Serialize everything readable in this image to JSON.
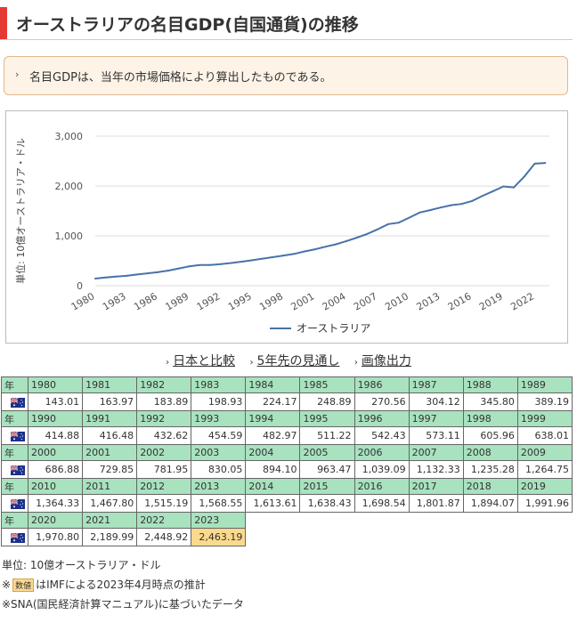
{
  "page": {
    "title": "オーストラリアの名目GDP(自国通貨)の推移",
    "note": "名目GDPは、当年の市場価格により算出したものである。"
  },
  "links": [
    {
      "label": "日本と比較"
    },
    {
      "label": "5年先の見通し"
    },
    {
      "label": "画像出力"
    }
  ],
  "chart_data": {
    "type": "line",
    "title": "",
    "xlabel": "",
    "ylabel": "単位: 10億オーストラリア・ドル",
    "ylim": [
      0,
      3000
    ],
    "yticks": [
      "0",
      "1,000",
      "2,000",
      "3,000"
    ],
    "xticks": [
      "1980",
      "1983",
      "1986",
      "1989",
      "1992",
      "1995",
      "1998",
      "2001",
      "2004",
      "2007",
      "2010",
      "2013",
      "2016",
      "2019",
      "2022"
    ],
    "grid": true,
    "legend": "bottom",
    "series": [
      {
        "name": "オーストラリア",
        "color": "#4a72a8",
        "x": [
          1980,
          1981,
          1982,
          1983,
          1984,
          1985,
          1986,
          1987,
          1988,
          1989,
          1990,
          1991,
          1992,
          1993,
          1994,
          1995,
          1996,
          1997,
          1998,
          1999,
          2000,
          2001,
          2002,
          2003,
          2004,
          2005,
          2006,
          2007,
          2008,
          2009,
          2010,
          2011,
          2012,
          2013,
          2014,
          2015,
          2016,
          2017,
          2018,
          2019,
          2020,
          2021,
          2022,
          2023
        ],
        "values": [
          143.01,
          163.97,
          183.89,
          198.93,
          224.17,
          248.89,
          270.56,
          304.12,
          345.8,
          389.19,
          414.88,
          416.48,
          432.62,
          454.59,
          482.97,
          511.22,
          542.43,
          573.11,
          605.96,
          638.01,
          686.88,
          729.85,
          781.95,
          830.05,
          894.1,
          963.47,
          1039.09,
          1132.33,
          1235.28,
          1264.75,
          1364.33,
          1467.8,
          1515.19,
          1568.55,
          1613.61,
          1638.43,
          1698.54,
          1801.87,
          1894.07,
          1991.96,
          1970.8,
          2189.99,
          2448.92,
          2463.19
        ]
      }
    ]
  },
  "table": {
    "row_label": "年",
    "country_flag": "australia-flag",
    "rows": [
      {
        "years": [
          "1980",
          "1981",
          "1982",
          "1983",
          "1984",
          "1985",
          "1986",
          "1987",
          "1988",
          "1989"
        ],
        "values": [
          "143.01",
          "163.97",
          "183.89",
          "198.93",
          "224.17",
          "248.89",
          "270.56",
          "304.12",
          "345.80",
          "389.19"
        ]
      },
      {
        "years": [
          "1990",
          "1991",
          "1992",
          "1993",
          "1994",
          "1995",
          "1996",
          "1997",
          "1998",
          "1999"
        ],
        "values": [
          "414.88",
          "416.48",
          "432.62",
          "454.59",
          "482.97",
          "511.22",
          "542.43",
          "573.11",
          "605.96",
          "638.01"
        ]
      },
      {
        "years": [
          "2000",
          "2001",
          "2002",
          "2003",
          "2004",
          "2005",
          "2006",
          "2007",
          "2008",
          "2009"
        ],
        "values": [
          "686.88",
          "729.85",
          "781.95",
          "830.05",
          "894.10",
          "963.47",
          "1,039.09",
          "1,132.33",
          "1,235.28",
          "1,264.75"
        ]
      },
      {
        "years": [
          "2010",
          "2011",
          "2012",
          "2013",
          "2014",
          "2015",
          "2016",
          "2017",
          "2018",
          "2019"
        ],
        "values": [
          "1,364.33",
          "1,467.80",
          "1,515.19",
          "1,568.55",
          "1,613.61",
          "1,638.43",
          "1,698.54",
          "1,801.87",
          "1,894.07",
          "1,991.96"
        ]
      },
      {
        "years": [
          "2020",
          "2021",
          "2022",
          "2023"
        ],
        "values": [
          "1,970.80",
          "2,189.99",
          "2,448.92",
          "2,463.19"
        ]
      }
    ],
    "estimate_year": "2023",
    "estimate_color": "#fbd98e"
  },
  "footer": {
    "unit": "単位: 10億オーストラリア・ドル",
    "est_prefix": "※",
    "est_badge": "数値",
    "est_text": "はIMFによる2023年4月時点の推計",
    "sna": "※SNA(国民経済計算マニュアル)に基づいたデータ"
  }
}
